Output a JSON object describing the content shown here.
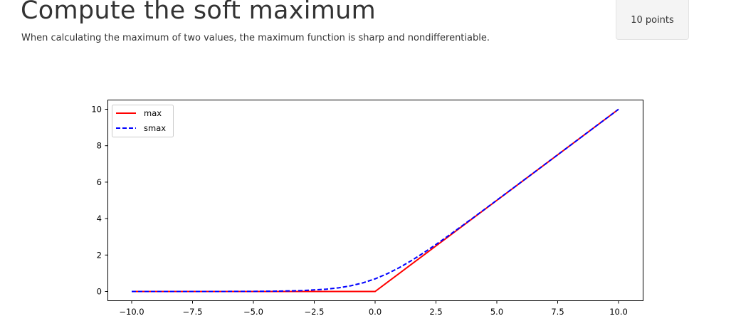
{
  "header": {
    "title": "Compute the soft maximum",
    "description": "When calculating the maximum of two values, the maximum function is sharp and nondifferentiable.",
    "points_badge": "10 points"
  },
  "colors": {
    "max": "#ff0000",
    "smax": "#0000ff",
    "text": "#333333",
    "badge_bg": "#f4f4f4"
  },
  "chart_data": {
    "type": "line",
    "title": "",
    "xlabel": "",
    "ylabel": "",
    "xlim": [
      -11,
      11
    ],
    "ylim": [
      -0.5,
      10.5
    ],
    "grid": false,
    "legend_position": "upper left",
    "x_ticks": [
      "−10.0",
      "−7.5",
      "−5.0",
      "−2.5",
      "0.0",
      "2.5",
      "5.0",
      "7.5",
      "10.0"
    ],
    "y_ticks": [
      "0",
      "2",
      "4",
      "6",
      "8",
      "10"
    ],
    "x": [
      -10,
      -8,
      -6,
      -5,
      -4,
      -3,
      -2,
      -1.5,
      -1,
      -0.5,
      0,
      0.5,
      1,
      1.5,
      2,
      2.5,
      3,
      4,
      5,
      6,
      8,
      10
    ],
    "series": [
      {
        "name": "max",
        "style": "solid",
        "color": "#ff0000",
        "values": [
          0,
          0,
          0,
          0,
          0,
          0,
          0,
          0,
          0,
          0,
          0,
          0.5,
          1,
          1.5,
          2,
          2.5,
          3,
          4,
          5,
          6,
          8,
          10
        ]
      },
      {
        "name": "smax",
        "style": "dashed",
        "color": "#0000ff",
        "values": [
          5e-05,
          0.0003,
          0.0025,
          0.0067,
          0.018,
          0.049,
          0.127,
          0.201,
          0.313,
          0.474,
          0.693,
          0.974,
          1.313,
          1.701,
          2.127,
          2.579,
          3.049,
          4.018,
          5.007,
          6.002,
          8.0003,
          10.00005
        ]
      }
    ],
    "legend": [
      {
        "label": "max",
        "style": "solid",
        "color": "#ff0000"
      },
      {
        "label": "smax",
        "style": "dashed",
        "color": "#0000ff"
      }
    ]
  }
}
